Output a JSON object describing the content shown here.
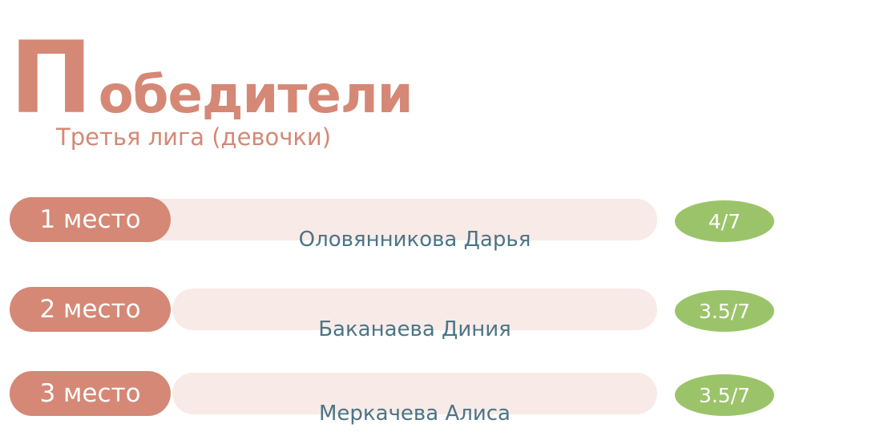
{
  "title": "Победители",
  "subtitle": "Третья лига (девочки)",
  "colors": {
    "accent": "#d58876",
    "bar": "#f8eae7",
    "score": "#9bc46a",
    "name": "#4b7585"
  },
  "winners": [
    {
      "place": "1 место",
      "name": "Оловянникова Дарья",
      "score": "4/7"
    },
    {
      "place": "2 место",
      "name": "Баканаева Диния",
      "score": "3.5/7"
    },
    {
      "place": "3 место",
      "name": "Меркачева Алиса",
      "score": "3.5/7"
    }
  ]
}
